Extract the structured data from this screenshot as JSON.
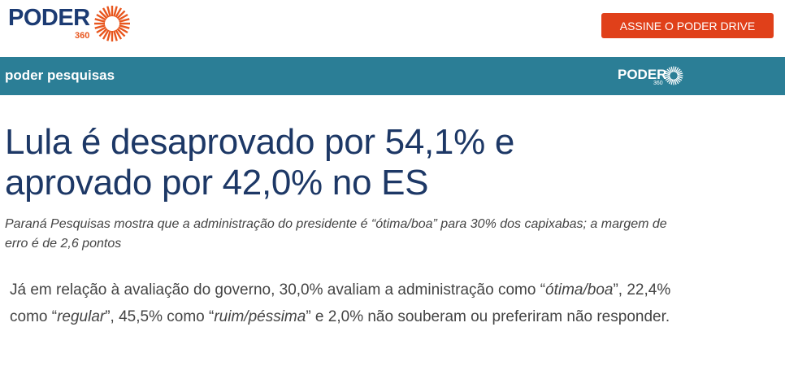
{
  "header": {
    "logo": "PODER",
    "logo_sub": "360",
    "button": "ASSINE O PODER DRIVE"
  },
  "section_bar": {
    "title": "poder pesquisas",
    "logo": "PODER",
    "logo_sub": "360"
  },
  "article": {
    "headline": "Lula é desaprovado por 54,1% e aprovado por 42,0% no ES",
    "subtitle": "Paraná Pesquisas mostra que a administração do presidente é “ótima/boa” para 30% dos capixabas; a margem de erro é de 2,6 pontos",
    "body": [
      "Já em relação à avaliação do governo, 30,0% avaliam a administração como “",
      "ótima/boa",
      "”, 22,4% como “",
      "regular",
      "”, 45,5% como “",
      "ruim/péssima",
      "” e 2,0% não souberam ou preferiram não responder."
    ]
  }
}
